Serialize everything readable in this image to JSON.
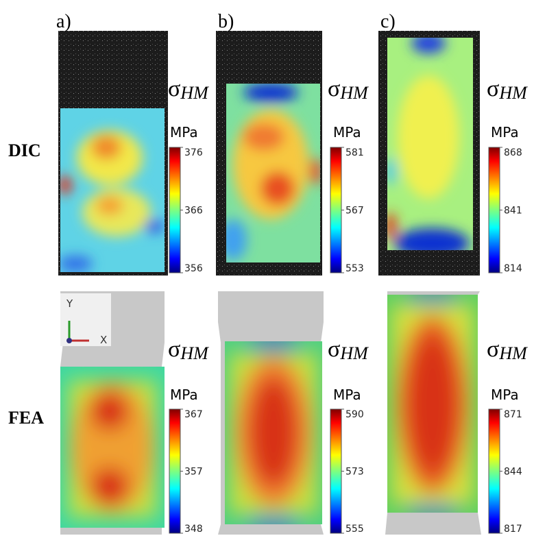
{
  "panels": [
    "a)",
    "b)",
    "c)"
  ],
  "axes": {
    "y": "Y",
    "x": "X"
  },
  "rows": [
    {
      "name": "DIC",
      "maps": [
        {
          "symbol": "σ",
          "subscript": "HM",
          "unit": "MPa",
          "ticks": [
            376,
            366,
            356
          ]
        },
        {
          "symbol": "σ",
          "subscript": "HM",
          "unit": "MPa",
          "ticks": [
            581,
            567,
            553
          ]
        },
        {
          "symbol": "σ",
          "subscript": "HM",
          "unit": "MPa",
          "ticks": [
            868,
            841,
            814
          ]
        }
      ]
    },
    {
      "name": "FEA",
      "maps": [
        {
          "symbol": "σ",
          "subscript": "HM",
          "unit": "MPa",
          "ticks": [
            367,
            357,
            348
          ]
        },
        {
          "symbol": "σ",
          "subscript": "HM",
          "unit": "MPa",
          "ticks": [
            590,
            573,
            555
          ]
        },
        {
          "symbol": "σ",
          "subscript": "HM",
          "unit": "MPa",
          "ticks": [
            871,
            844,
            817
          ]
        }
      ]
    }
  ]
}
